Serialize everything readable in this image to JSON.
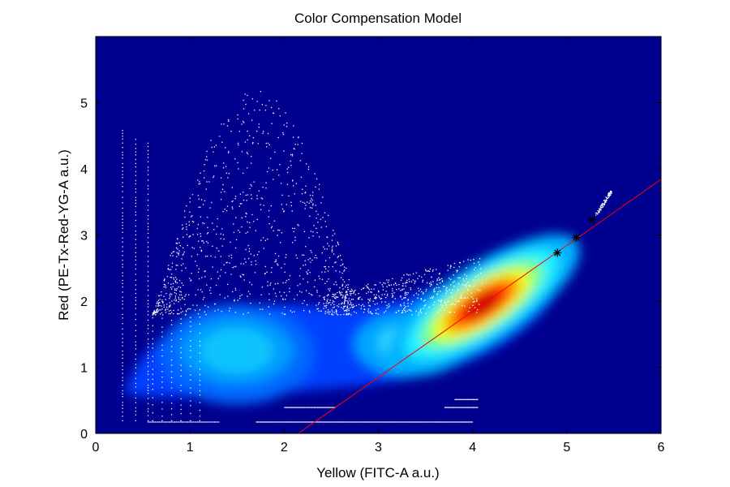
{
  "chart_data": {
    "type": "heatmap",
    "title": "Color Compensation Model",
    "xlabel": "Yellow (FITC-A a.u.)",
    "ylabel": "Red (PE-Tx-Red-YG-A a.u.)",
    "xlim": [
      0,
      6
    ],
    "ylim": [
      0,
      6
    ],
    "xticks": [
      0,
      1,
      2,
      3,
      4,
      5,
      6
    ],
    "yticks": [
      0,
      1,
      2,
      3,
      4,
      5
    ],
    "colormap": "jet",
    "grid": false,
    "density_clusters": [
      {
        "x": 1.5,
        "y": 1.2,
        "level": 0.55
      },
      {
        "x": 3.3,
        "y": 1.35,
        "level": 0.62
      },
      {
        "x": 4.1,
        "y": 1.95,
        "level": 1.0
      }
    ],
    "fit_line": {
      "color": "#ff0000",
      "points": [
        {
          "x": 2.15,
          "y": 0.0
        },
        {
          "x": 6.0,
          "y": 3.84
        }
      ]
    },
    "marker_points": [
      {
        "x": 4.9,
        "y": 2.73
      },
      {
        "x": 5.1,
        "y": 2.96
      },
      {
        "x": 5.27,
        "y": 3.23
      }
    ],
    "scatter_regions": [
      {
        "x": [
          0.3,
          2.6
        ],
        "y": [
          1.8,
          5.4
        ]
      },
      {
        "x": [
          2.4,
          4.0
        ],
        "y": [
          1.8,
          2.4
        ]
      },
      {
        "x": [
          1.7,
          4.0
        ],
        "y": [
          0.15,
          0.45
        ]
      }
    ]
  }
}
